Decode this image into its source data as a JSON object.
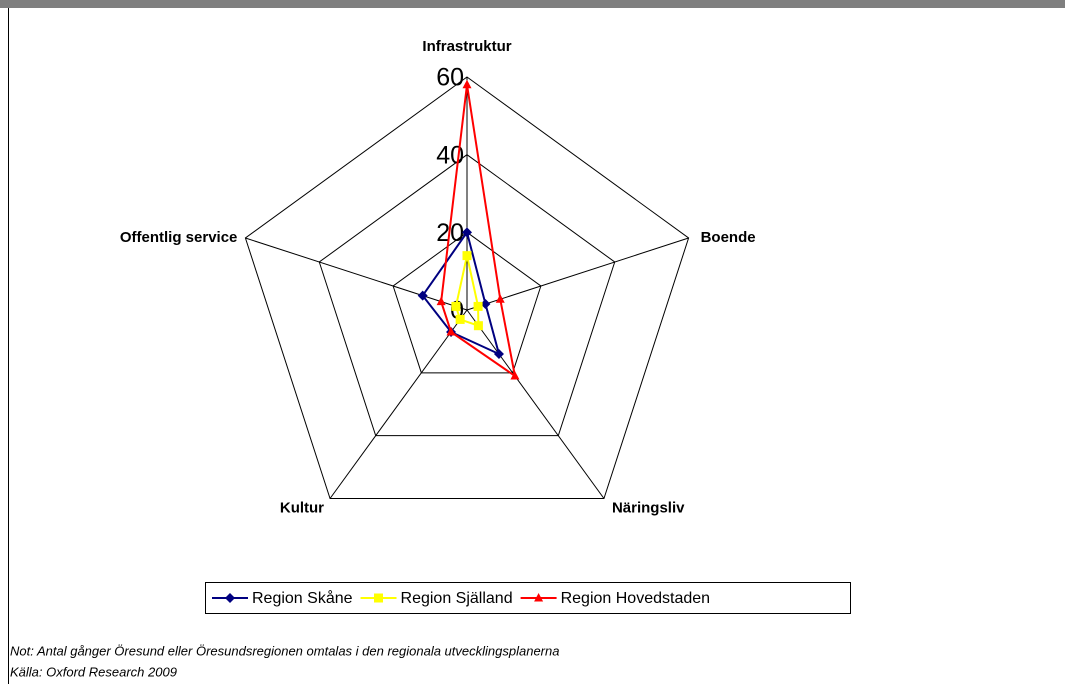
{
  "chart_data": {
    "type": "radar",
    "categories": [
      "Infrastruktur",
      "Boende",
      "Näringsliv",
      "Kultur",
      "Offentlig service"
    ],
    "series": [
      {
        "name": "Region Skåne",
        "color": "#000080",
        "marker": "diamond",
        "values": [
          20,
          5,
          14,
          7,
          12
        ]
      },
      {
        "name": "Region Själland",
        "color": "#ffff00",
        "marker": "square",
        "values": [
          14,
          3,
          5,
          3,
          3
        ]
      },
      {
        "name": "Region Hovedstaden",
        "color": "#ff0000",
        "marker": "triangle",
        "values": [
          58,
          9,
          21,
          7,
          7
        ]
      }
    ],
    "ylim": [
      0,
      60
    ],
    "yticks": [
      0,
      20,
      40,
      60
    ],
    "grid": true
  },
  "notes": [
    "Not: Antal gånger Öresund eller Öresundsregionen omtalas i den regionala utvecklingsplanerna",
    "Källa: Oxford Research 2009"
  ]
}
